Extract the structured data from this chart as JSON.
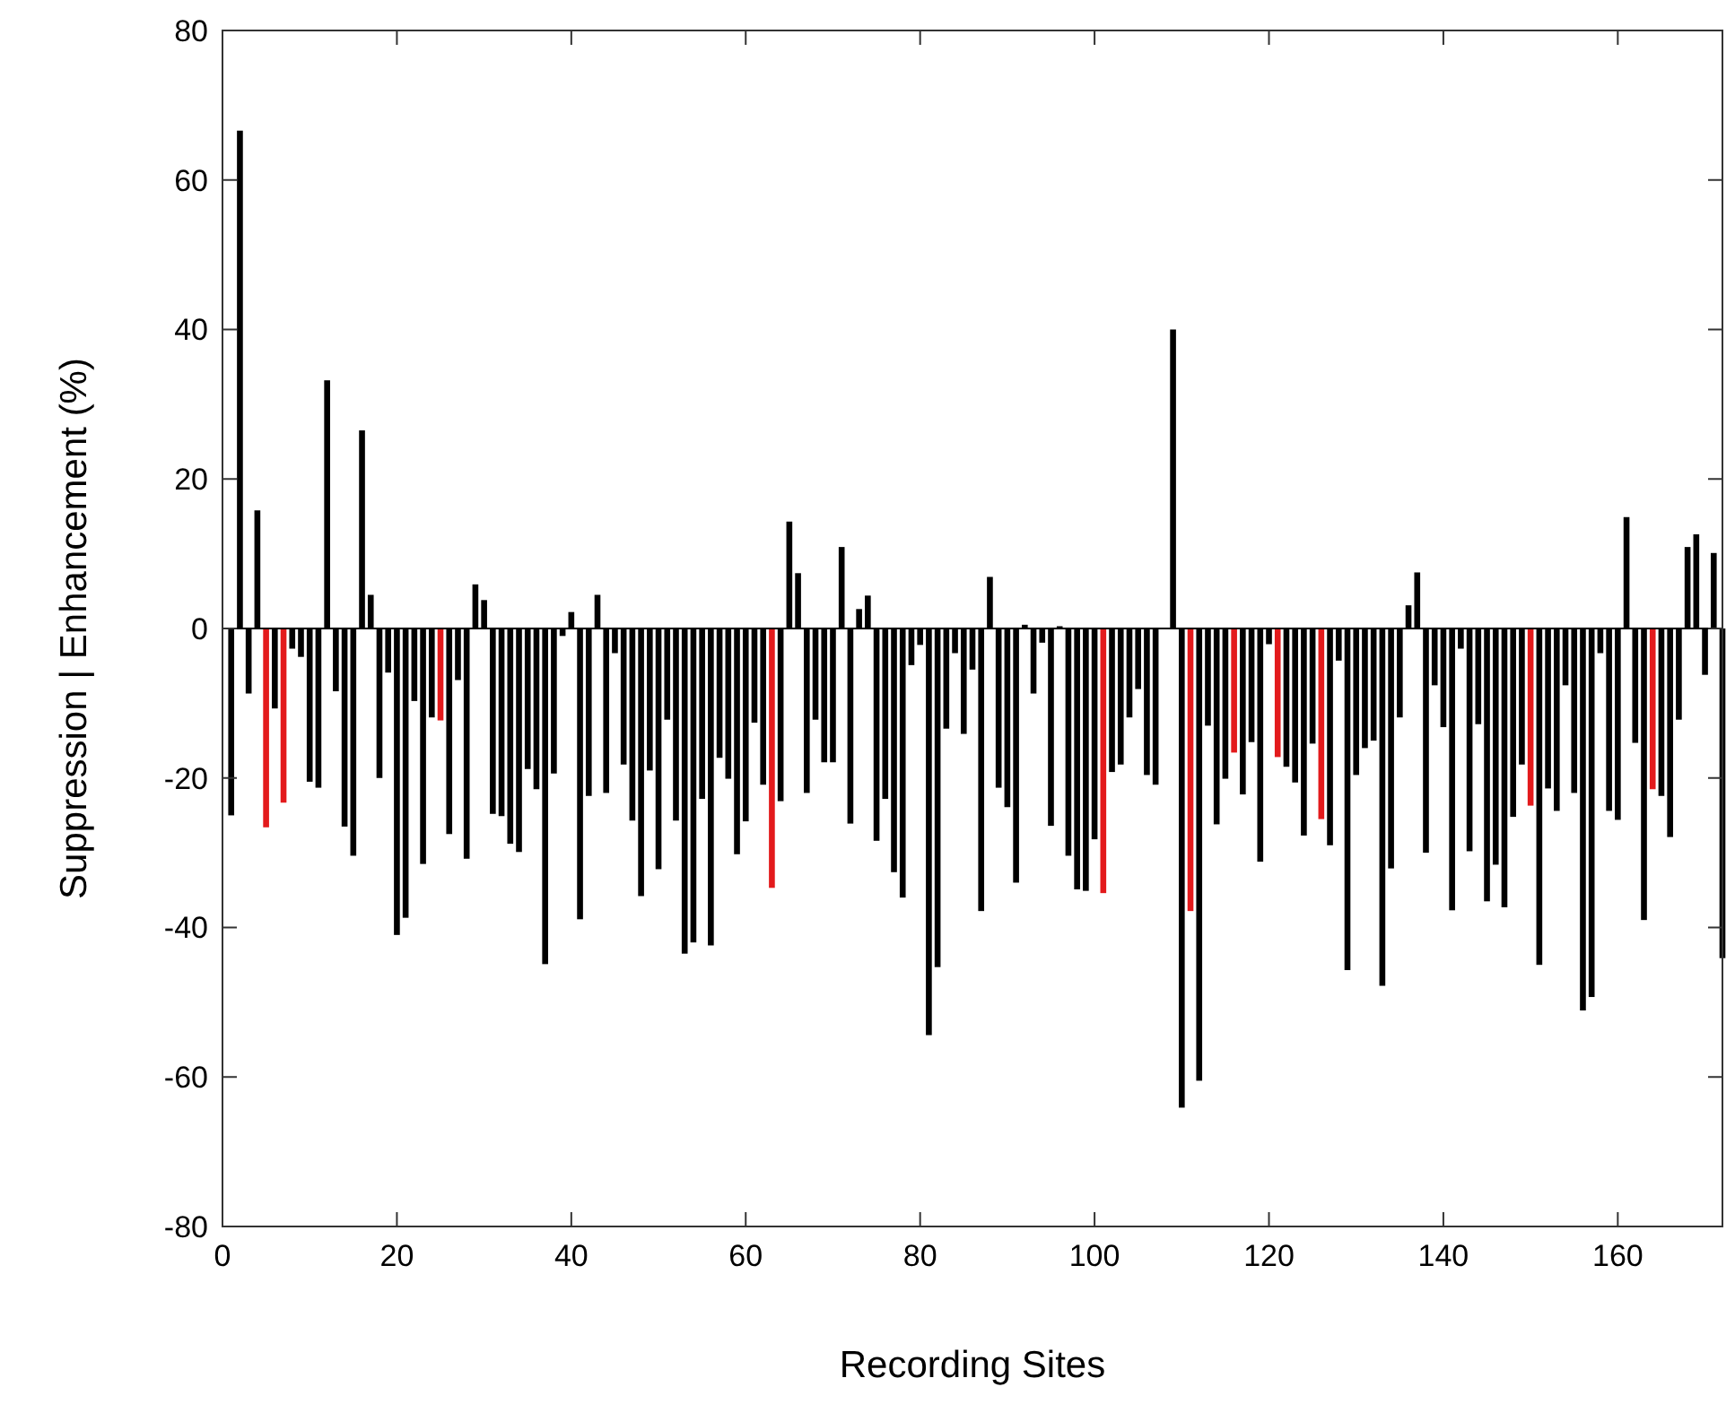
{
  "chart_data": {
    "type": "bar",
    "xlabel": "Recording Sites",
    "ylabel": "Suppression | Enhancement (%)",
    "x": [
      1,
      2,
      3,
      4,
      5,
      6,
      7,
      8,
      9,
      10,
      11,
      12,
      13,
      14,
      15,
      16,
      17,
      18,
      19,
      20,
      21,
      22,
      23,
      24,
      25,
      26,
      27,
      28,
      29,
      30,
      31,
      32,
      33,
      34,
      35,
      36,
      37,
      38,
      39,
      40,
      41,
      42,
      43,
      44,
      45,
      46,
      47,
      48,
      49,
      50,
      51,
      52,
      53,
      54,
      55,
      56,
      57,
      58,
      59,
      60,
      61,
      62,
      63,
      64,
      65,
      66,
      67,
      68,
      69,
      70,
      71,
      72,
      73,
      74,
      75,
      76,
      77,
      78,
      79,
      80,
      81,
      82,
      83,
      84,
      85,
      86,
      87,
      88,
      89,
      90,
      91,
      92,
      93,
      94,
      95,
      96,
      97,
      98,
      99,
      100,
      101,
      102,
      103,
      104,
      105,
      106,
      107,
      108,
      109,
      110,
      111,
      112,
      113,
      114,
      115,
      116,
      117,
      118,
      119,
      120,
      121,
      122,
      123,
      124,
      125,
      126,
      127,
      128,
      129,
      130,
      131,
      132,
      133,
      134,
      135,
      136,
      137,
      138,
      139,
      140,
      141,
      142,
      143,
      144,
      145,
      146,
      147,
      148,
      149,
      150,
      151,
      152,
      153,
      154,
      155,
      156,
      157,
      158,
      159,
      160,
      161,
      162,
      163,
      164,
      165,
      166,
      167,
      168,
      169,
      170,
      171,
      172
    ],
    "values": [
      -25,
      66.6,
      -8.7,
      15.8,
      -26.6,
      -10.7,
      -23.3,
      -2.7,
      -3.8,
      -20.5,
      -21.3,
      33.2,
      -8.4,
      -26.5,
      -30.4,
      26.5,
      4.5,
      -20,
      -5.9,
      -41,
      -38.7,
      -9.7,
      -31.5,
      -11.9,
      -12.3,
      -27.5,
      -6.9,
      -30.8,
      5.9,
      3.8,
      -24.8,
      -25.1,
      -28.8,
      -29.9,
      -18.8,
      -21.5,
      -44.9,
      -19.4,
      -1,
      2.2,
      -38.9,
      -22.4,
      4.5,
      -22,
      -3.3,
      -18.2,
      -25.7,
      -35.8,
      -19,
      -32.2,
      -12.2,
      -25.7,
      -43.5,
      -42,
      -22.8,
      -42.4,
      -17.3,
      -20.1,
      -30.2,
      -25.8,
      -12.6,
      -20.9,
      -34.7,
      -23.1,
      14.3,
      7.4,
      -22,
      -12.2,
      -17.9,
      -17.9,
      10.9,
      -26.1,
      2.6,
      4.4,
      -28.4,
      -22.8,
      -32.6,
      -36,
      -4.9,
      -2.2,
      -54.4,
      -45.3,
      -13.4,
      -3.3,
      -14.1,
      -5.5,
      -37.8,
      6.9,
      -21.3,
      -23.9,
      -34,
      0.5,
      -8.7,
      -1.9,
      -26.4,
      0.3,
      -30.4,
      -34.9,
      -35.1,
      -28.2,
      -35.4,
      -19.2,
      -18.2,
      -11.9,
      -8.1,
      -19.6,
      -20.9,
      0,
      40,
      -64.1,
      -37.8,
      -60.5,
      -13,
      -26.2,
      -20.1,
      -16.6,
      -22.2,
      -15.2,
      -31.2,
      -2.1,
      -17.2,
      -18.5,
      -20.6,
      -27.7,
      -15.4,
      -25.5,
      -29,
      -4.3,
      -45.7,
      -19.6,
      -16,
      -15,
      -47.8,
      -32.1,
      -11.9,
      3.1,
      7.5,
      -30,
      -7.6,
      -13.2,
      -37.7,
      -2.7,
      -29.8,
      -12.8,
      -36.5,
      -31.6,
      -37.3,
      -25.2,
      -18.2,
      -23.7,
      -45,
      -21.4,
      -24.4,
      -7.6,
      -22,
      -51.1,
      -49.3,
      -3.3,
      -24.4,
      -25.6,
      14.9,
      -15.3,
      -39,
      -21.5,
      -22.4,
      -27.9,
      -12.2,
      10.9,
      12.6,
      -6.2,
      10.1,
      -44.1
    ],
    "colors": [
      "#000000",
      "#000000",
      "#000000",
      "#000000",
      "#e31a1c",
      "#000000",
      "#e31a1c",
      "#000000",
      "#000000",
      "#000000",
      "#000000",
      "#000000",
      "#000000",
      "#000000",
      "#000000",
      "#000000",
      "#000000",
      "#000000",
      "#000000",
      "#000000",
      "#000000",
      "#000000",
      "#000000",
      "#000000",
      "#e31a1c",
      "#000000",
      "#000000",
      "#000000",
      "#000000",
      "#000000",
      "#000000",
      "#000000",
      "#000000",
      "#000000",
      "#000000",
      "#000000",
      "#000000",
      "#000000",
      "#000000",
      "#000000",
      "#000000",
      "#000000",
      "#000000",
      "#000000",
      "#000000",
      "#000000",
      "#000000",
      "#000000",
      "#000000",
      "#000000",
      "#000000",
      "#000000",
      "#000000",
      "#000000",
      "#000000",
      "#000000",
      "#000000",
      "#000000",
      "#000000",
      "#000000",
      "#000000",
      "#000000",
      "#e31a1c",
      "#000000",
      "#000000",
      "#000000",
      "#000000",
      "#000000",
      "#000000",
      "#000000",
      "#000000",
      "#000000",
      "#000000",
      "#000000",
      "#000000",
      "#000000",
      "#000000",
      "#000000",
      "#000000",
      "#000000",
      "#000000",
      "#000000",
      "#000000",
      "#000000",
      "#000000",
      "#000000",
      "#000000",
      "#000000",
      "#000000",
      "#000000",
      "#000000",
      "#000000",
      "#000000",
      "#000000",
      "#000000",
      "#000000",
      "#000000",
      "#000000",
      "#000000",
      "#000000",
      "#e31a1c",
      "#000000",
      "#000000",
      "#000000",
      "#000000",
      "#000000",
      "#000000",
      "#000000",
      "#000000",
      "#000000",
      "#e31a1c",
      "#000000",
      "#000000",
      "#000000",
      "#000000",
      "#e31a1c",
      "#000000",
      "#000000",
      "#000000",
      "#000000",
      "#e31a1c",
      "#000000",
      "#000000",
      "#000000",
      "#000000",
      "#e31a1c",
      "#000000",
      "#000000",
      "#000000",
      "#000000",
      "#000000",
      "#000000",
      "#000000",
      "#000000",
      "#000000",
      "#000000",
      "#000000",
      "#000000",
      "#000000",
      "#000000",
      "#000000",
      "#000000",
      "#000000",
      "#000000",
      "#000000",
      "#000000",
      "#000000",
      "#000000",
      "#000000",
      "#e31a1c",
      "#000000",
      "#000000",
      "#000000",
      "#000000",
      "#000000",
      "#000000",
      "#000000",
      "#000000",
      "#000000",
      "#000000",
      "#000000",
      "#000000",
      "#000000",
      "#e31a1c",
      "#000000",
      "#000000",
      "#000000",
      "#000000",
      "#000000",
      "#000000",
      "#000000",
      "#000000"
    ],
    "xlim": [
      0,
      172
    ],
    "ylim": [
      -80,
      80
    ],
    "xticks": [
      0,
      20,
      40,
      60,
      80,
      100,
      120,
      140,
      160
    ],
    "yticks": [
      -80,
      -60,
      -40,
      -20,
      0,
      20,
      40,
      60,
      80
    ]
  }
}
